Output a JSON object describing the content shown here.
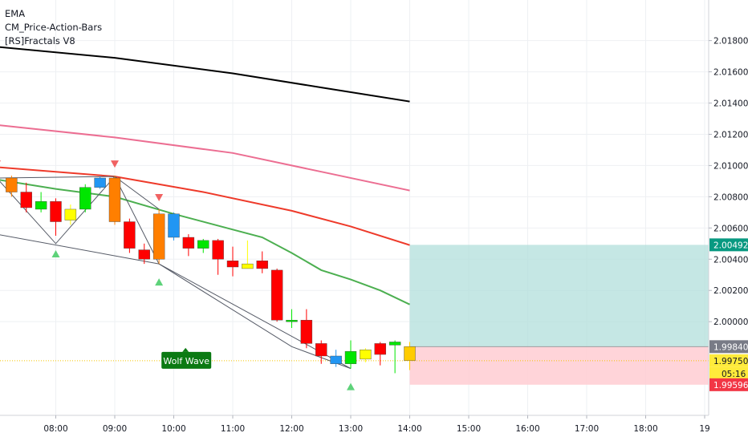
{
  "legend": {
    "items": [
      {
        "label": "EMA"
      },
      {
        "label": "CM_Price-Action-Bars"
      },
      {
        "label": "[RS]Fractals V8"
      }
    ]
  },
  "chart_data": {
    "type": "candlestick",
    "y_ticks": [
      "2.01800",
      "2.01600",
      "2.01400",
      "2.01200",
      "2.01000",
      "2.00800",
      "2.00600",
      "2.00400",
      "2.00200",
      "2.00000"
    ],
    "y_tick_values": [
      2.018,
      2.016,
      2.014,
      2.012,
      2.01,
      2.008,
      2.006,
      2.004,
      2.002,
      2.0
    ],
    "ylim": [
      1.994,
      2.0206
    ],
    "x_ticks": [
      "08:00",
      "09:00",
      "10:00",
      "11:00",
      "12:00",
      "13:00",
      "14:00",
      "15:00",
      "16:00",
      "17:00",
      "18:00",
      "19"
    ],
    "x_tick_hours": [
      8,
      9,
      10,
      11,
      12,
      13,
      14,
      15,
      16,
      17,
      18,
      19
    ],
    "candles": [
      {
        "t": 7.25,
        "o": 2.0092,
        "h": 2.00935,
        "l": 2.008,
        "c": 2.0083,
        "color": "#ff7f00"
      },
      {
        "t": 7.5,
        "o": 2.0083,
        "h": 2.0089,
        "l": 2.007,
        "c": 2.0073,
        "color": "#ff0000"
      },
      {
        "t": 7.75,
        "o": 2.0072,
        "h": 2.0083,
        "l": 2.007,
        "c": 2.0077,
        "color": "#00e600"
      },
      {
        "t": 8.0,
        "o": 2.0077,
        "h": 2.0079,
        "l": 2.0055,
        "c": 2.0064,
        "color": "#ff0000"
      },
      {
        "t": 8.25,
        "o": 2.0065,
        "h": 2.0075,
        "l": 2.0062,
        "c": 2.0072,
        "color": "#ffff00"
      },
      {
        "t": 8.5,
        "o": 2.0072,
        "h": 2.0088,
        "l": 2.007,
        "c": 2.0086,
        "color": "#00e600"
      },
      {
        "t": 8.75,
        "o": 2.0086,
        "h": 2.0093,
        "l": 2.0085,
        "c": 2.0092,
        "color": "#2196f3"
      },
      {
        "t": 9.0,
        "o": 2.0092,
        "h": 2.00935,
        "l": 2.0062,
        "c": 2.0064,
        "color": "#ff7f00"
      },
      {
        "t": 9.25,
        "o": 2.0064,
        "h": 2.0066,
        "l": 2.0044,
        "c": 2.0047,
        "color": "#ff0000"
      },
      {
        "t": 9.5,
        "o": 2.0046,
        "h": 2.005,
        "l": 2.0037,
        "c": 2.004,
        "color": "#ff0000"
      },
      {
        "t": 9.75,
        "o": 2.004,
        "h": 2.0072,
        "l": 2.0037,
        "c": 2.0069,
        "color": "#ff7f00"
      },
      {
        "t": 10.0,
        "o": 2.0069,
        "h": 2.007,
        "l": 2.0052,
        "c": 2.0054,
        "color": "#2196f3"
      },
      {
        "t": 10.25,
        "o": 2.0054,
        "h": 2.0056,
        "l": 2.0042,
        "c": 2.0047,
        "color": "#ff0000"
      },
      {
        "t": 10.5,
        "o": 2.0047,
        "h": 2.0053,
        "l": 2.0044,
        "c": 2.0052,
        "color": "#00e600"
      },
      {
        "t": 10.75,
        "o": 2.0052,
        "h": 2.0053,
        "l": 2.003,
        "c": 2.004,
        "color": "#ff0000"
      },
      {
        "t": 11.0,
        "o": 2.0039,
        "h": 2.0048,
        "l": 2.0029,
        "c": 2.0035,
        "color": "#ff0000"
      },
      {
        "t": 11.25,
        "o": 2.0037,
        "h": 2.0052,
        "l": 2.0034,
        "c": 2.0034,
        "color": "#ffff00"
      },
      {
        "t": 11.5,
        "o": 2.0039,
        "h": 2.0045,
        "l": 2.0031,
        "c": 2.0034,
        "color": "#ff0000"
      },
      {
        "t": 11.75,
        "o": 2.0033,
        "h": 2.0034,
        "l": 2.0,
        "c": 2.0001,
        "color": "#ff0000"
      },
      {
        "t": 12.0,
        "o": 2.0001,
        "h": 2.0008,
        "l": 1.9996,
        "c": 2.0001,
        "color": "#00e600"
      },
      {
        "t": 12.25,
        "o": 2.0001,
        "h": 2.0008,
        "l": 1.9983,
        "c": 1.9986,
        "color": "#ff0000"
      },
      {
        "t": 12.5,
        "o": 1.9986,
        "h": 1.9988,
        "l": 1.9973,
        "c": 1.9978,
        "color": "#ff0000"
      },
      {
        "t": 12.75,
        "o": 1.9978,
        "h": 1.9982,
        "l": 1.9971,
        "c": 1.9973,
        "color": "#2196f3"
      },
      {
        "t": 13.0,
        "o": 1.9973,
        "h": 1.9988,
        "l": 1.997,
        "c": 1.9981,
        "color": "#00e600"
      },
      {
        "t": 13.25,
        "o": 1.9976,
        "h": 1.9983,
        "l": 1.9974,
        "c": 1.9982,
        "color": "#ffff00"
      },
      {
        "t": 13.5,
        "o": 1.9979,
        "h": 1.9987,
        "l": 1.9972,
        "c": 1.9986,
        "color": "#ff0000"
      },
      {
        "t": 13.75,
        "o": 1.9985,
        "h": 1.9988,
        "l": 1.9967,
        "c": 1.9987,
        "color": "#00e600"
      },
      {
        "t": 14.0,
        "o": 1.9984,
        "h": 1.9987,
        "l": 1.9969,
        "c": 1.9975,
        "color": "#ffcc00"
      }
    ],
    "ema_lines": [
      {
        "color": "#000000",
        "points": [
          [
            7.0,
            2.0176
          ],
          [
            9.0,
            2.0169
          ],
          [
            11.0,
            2.0159
          ],
          [
            12.5,
            2.015
          ],
          [
            14.0,
            2.0141
          ]
        ]
      },
      {
        "color": "#ec6e92",
        "points": [
          [
            7.0,
            2.0126
          ],
          [
            9.0,
            2.0118
          ],
          [
            11.0,
            2.0108
          ],
          [
            12.5,
            2.0096
          ],
          [
            14.0,
            2.0084
          ]
        ]
      },
      {
        "color": "#ee3a2a",
        "points": [
          [
            7.0,
            2.0099
          ],
          [
            9.0,
            2.0093
          ],
          [
            10.5,
            2.0083
          ],
          [
            12.0,
            2.0071
          ],
          [
            13.0,
            2.0061
          ],
          [
            14.0,
            2.0049
          ]
        ]
      },
      {
        "color": "#4caf50",
        "points": [
          [
            7.0,
            2.0091
          ],
          [
            8.0,
            2.0085
          ],
          [
            9.0,
            2.008
          ],
          [
            10.0,
            2.0069
          ],
          [
            11.0,
            2.0059
          ],
          [
            11.5,
            2.0054
          ],
          [
            12.0,
            2.0044
          ],
          [
            12.5,
            2.0033
          ],
          [
            13.0,
            2.0027
          ],
          [
            13.5,
            2.002
          ],
          [
            14.0,
            2.0011
          ]
        ]
      }
    ],
    "wolf_lines": [
      [
        [
          7.0,
          2.0092
        ],
        [
          8.0,
          2.005
        ],
        [
          9.0,
          2.0093
        ],
        [
          9.75,
          2.0037
        ],
        [
          12.0,
          1.9984
        ],
        [
          13.0,
          1.997
        ]
      ],
      [
        [
          7.0,
          2.0092
        ],
        [
          9.0,
          2.0093
        ]
      ],
      [
        [
          7.0,
          2.0056
        ],
        [
          9.75,
          2.0037
        ],
        [
          13.0,
          1.997
        ]
      ],
      [
        [
          9.0,
          2.0093
        ],
        [
          9.75,
          2.0072
        ]
      ]
    ],
    "fractals_down": [
      7.0,
      9.0,
      9.75
    ],
    "fractals_up": [
      8.0,
      9.75,
      13.0
    ],
    "position": {
      "x_start": 14.0,
      "x_end": 19.0,
      "target": 2.00492,
      "entry": 1.9984,
      "stop": 1.99596
    },
    "current_price": 1.9975,
    "labels": {
      "wolf_wave": "Wolf Wave",
      "target": "2.00492",
      "entry": "1.99840",
      "current": "1.99750",
      "countdown": "05:16",
      "stop": "1.99596"
    },
    "colors": {
      "target_zone": "#b2dfdb",
      "stop_zone": "#ffcdd2",
      "target_badge": "#089981",
      "entry_badge": "#787b86",
      "current_badge": "#ffeb3b",
      "stop_badge": "#f23645",
      "wolf_badge": "#0b7a13",
      "fractal_down": "#f06262",
      "fractal_up": "#5ed27a"
    }
  }
}
